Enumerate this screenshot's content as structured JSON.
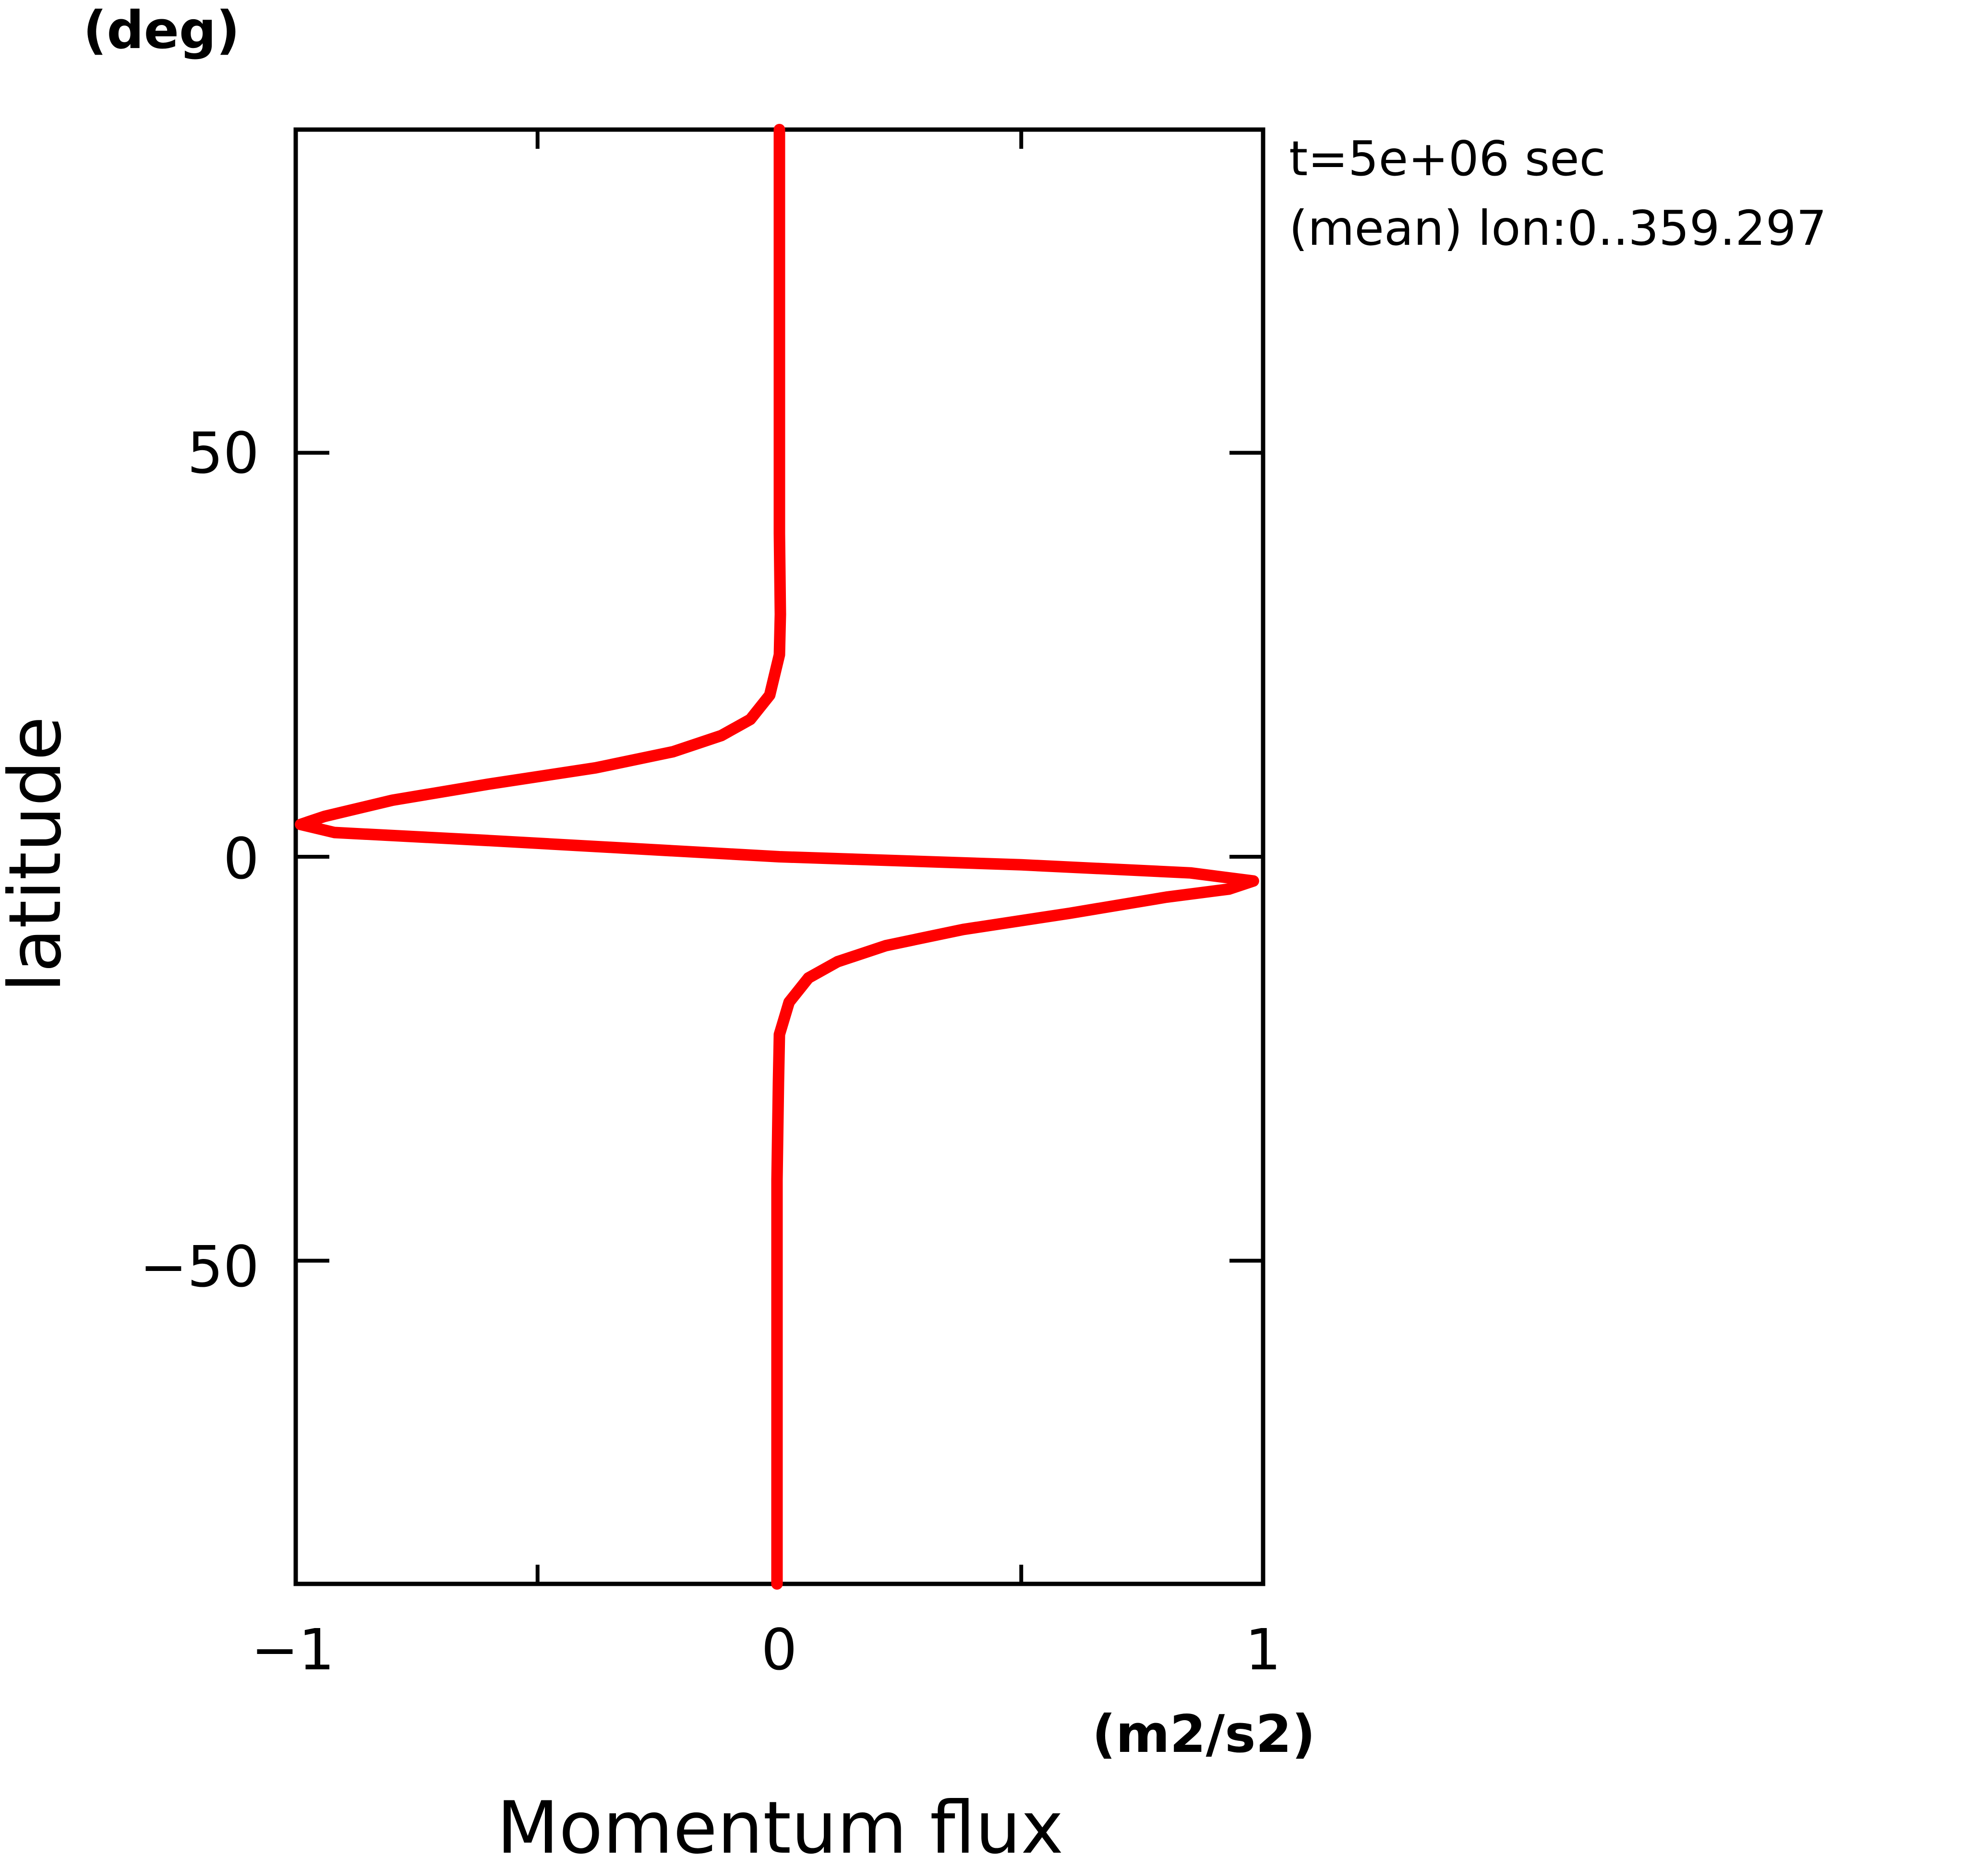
{
  "chart_data": {
    "type": "line",
    "title": "",
    "xlabel": "Momentum flux",
    "ylabel": "latitude",
    "xunit": "(m2/s2)",
    "yunit": "(deg)",
    "xlim": [
      -1,
      1
    ],
    "ylim": [
      -90,
      90
    ],
    "x_ticks": [
      -1,
      0,
      1
    ],
    "x_ticks_minor": [
      -0.5,
      0.5
    ],
    "y_ticks": [
      50,
      0,
      -50
    ],
    "grid": false,
    "annotations": [
      "t=5e+06 sec",
      "(mean) lon:0..359.297"
    ],
    "series": [
      {
        "color": "#ff0000",
        "points": [
          {
            "lat": 90,
            "flux": 0.0
          },
          {
            "lat": 40,
            "flux": 0.0
          },
          {
            "lat": 30,
            "flux": 0.002
          },
          {
            "lat": 25,
            "flux": 0.0
          },
          {
            "lat": 20,
            "flux": -0.02
          },
          {
            "lat": 17,
            "flux": -0.06
          },
          {
            "lat": 15,
            "flux": -0.12
          },
          {
            "lat": 13,
            "flux": -0.22
          },
          {
            "lat": 11,
            "flux": -0.38
          },
          {
            "lat": 9,
            "flux": -0.6
          },
          {
            "lat": 7,
            "flux": -0.8
          },
          {
            "lat": 5,
            "flux": -0.94
          },
          {
            "lat": 4,
            "flux": -0.99
          },
          {
            "lat": 3,
            "flux": -0.92
          },
          {
            "lat": 2,
            "flux": -0.6
          },
          {
            "lat": 0,
            "flux": 0.0
          },
          {
            "lat": -1,
            "flux": 0.5
          },
          {
            "lat": -2,
            "flux": 0.85
          },
          {
            "lat": -3,
            "flux": 0.98
          },
          {
            "lat": -4,
            "flux": 0.93
          },
          {
            "lat": -5,
            "flux": 0.8
          },
          {
            "lat": -7,
            "flux": 0.6
          },
          {
            "lat": -9,
            "flux": 0.38
          },
          {
            "lat": -11,
            "flux": 0.22
          },
          {
            "lat": -13,
            "flux": 0.12
          },
          {
            "lat": -15,
            "flux": 0.06
          },
          {
            "lat": -18,
            "flux": 0.02
          },
          {
            "lat": -22,
            "flux": 0.0
          },
          {
            "lat": -28,
            "flux": -0.002
          },
          {
            "lat": -40,
            "flux": -0.005
          },
          {
            "lat": -90,
            "flux": -0.005
          }
        ]
      }
    ]
  }
}
